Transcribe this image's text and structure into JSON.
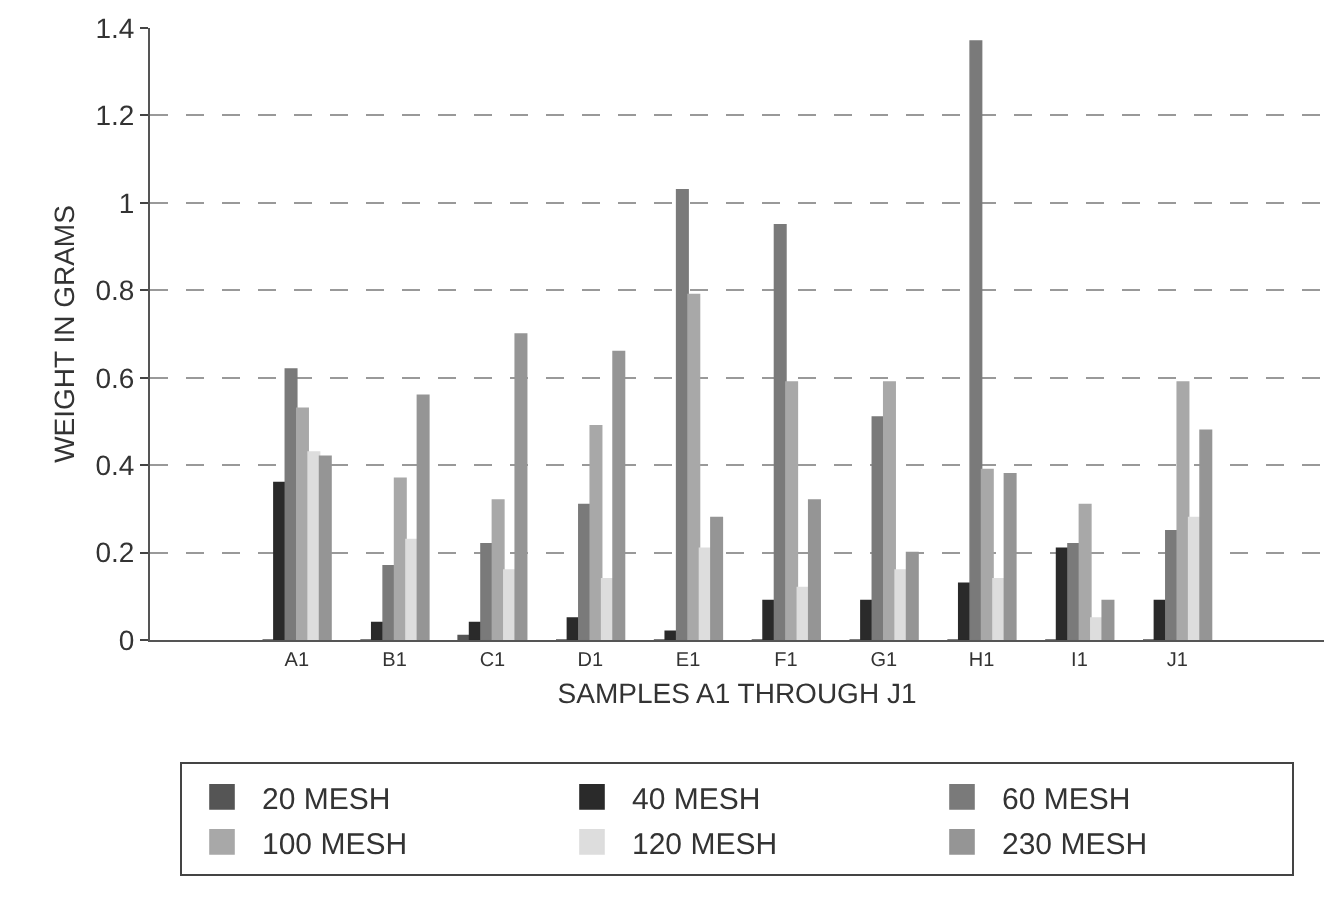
{
  "chart_data": {
    "type": "bar",
    "xlabel": "SAMPLES A1 THROUGH J1",
    "ylabel": "WEIGHT IN GRAMS",
    "categories": [
      "A1",
      "B1",
      "C1",
      "D1",
      "E1",
      "F1",
      "G1",
      "H1",
      "I1",
      "J1"
    ],
    "series": [
      {
        "name": "20 MESH",
        "color": "#555555",
        "values": [
          0,
          0,
          0.01,
          0,
          0,
          0,
          0,
          0,
          0,
          0
        ]
      },
      {
        "name": "40 MESH",
        "color": "#2a2a2a",
        "values": [
          0.36,
          0.04,
          0.04,
          0.05,
          0.02,
          0.09,
          0.09,
          0.13,
          0.21,
          0.09
        ]
      },
      {
        "name": "60 MESH",
        "color": "#7a7a7a",
        "values": [
          0.62,
          0.17,
          0.22,
          0.31,
          1.03,
          0.95,
          0.51,
          1.37,
          0.22,
          0.25
        ]
      },
      {
        "name": "100 MESH",
        "color": "#a8a8a8",
        "values": [
          0.53,
          0.37,
          0.32,
          0.49,
          0.79,
          0.59,
          0.59,
          0.39,
          0.31,
          0.59
        ]
      },
      {
        "name": "120 MESH",
        "color": "#dddddd",
        "values": [
          0.43,
          0.23,
          0.16,
          0.14,
          0.21,
          0.12,
          0.16,
          0.14,
          0.05,
          0.28
        ]
      },
      {
        "name": "230 MESH",
        "color": "#959595",
        "values": [
          0.42,
          0.56,
          0.7,
          0.66,
          0.28,
          0.32,
          0.2,
          0.38,
          0.09,
          0.48
        ]
      }
    ],
    "ylim": [
      0,
      1.4
    ],
    "yticks": [
      0,
      0.2,
      0.4,
      0.6,
      0.8,
      1,
      1.2,
      1.4
    ],
    "grid": "y",
    "legend": "bottom"
  }
}
